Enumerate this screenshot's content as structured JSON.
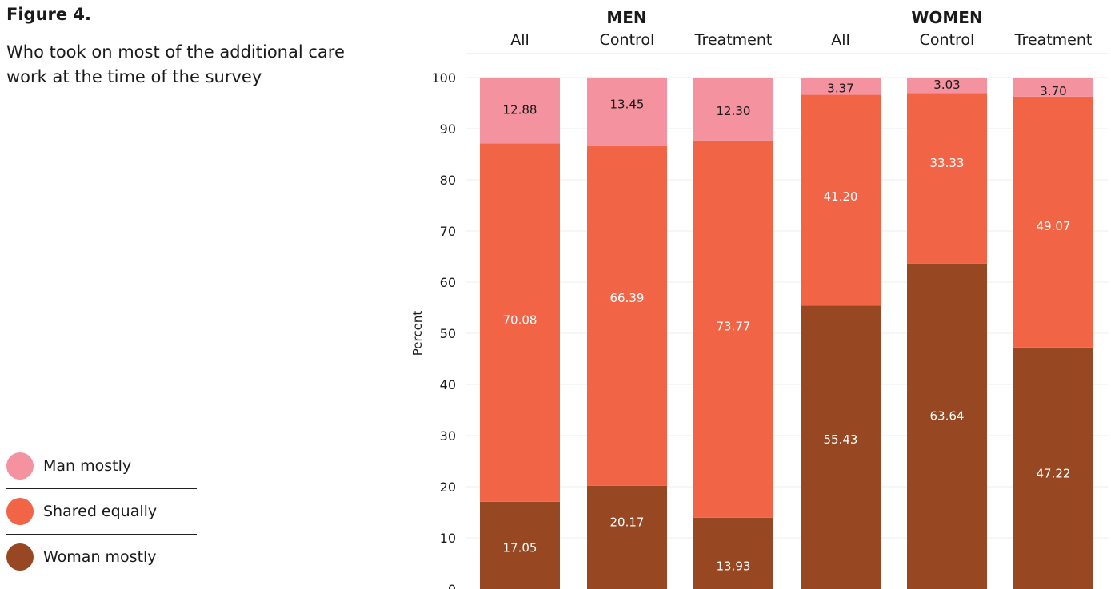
{
  "figure": {
    "title": "Figure 4.",
    "subtitle": "Who took on most of the additional care work at the time of the survey"
  },
  "legend": [
    {
      "label": "Man mostly",
      "color": "#f4929f"
    },
    {
      "label": "Shared equally",
      "color": "#f26446"
    },
    {
      "label": "Woman mostly",
      "color": "#974822"
    }
  ],
  "chart_data": {
    "type": "bar",
    "stacked": true,
    "title": "",
    "xlabel": "",
    "ylabel": "Percent",
    "ylim": [
      0,
      100
    ],
    "yticks": [
      0,
      10,
      20,
      30,
      40,
      50,
      60,
      70,
      80,
      90,
      100
    ],
    "grid": true,
    "groups": [
      {
        "label": "MEN",
        "categories": [
          "All",
          "Control",
          "Treatment"
        ]
      },
      {
        "label": "WOMEN",
        "categories": [
          "All",
          "Control",
          "Treatment"
        ]
      }
    ],
    "categories": [
      "All",
      "Control",
      "Treatment",
      "All",
      "Control",
      "Treatment"
    ],
    "series": [
      {
        "name": "Woman mostly",
        "color": "#974822",
        "label_color": "#ffffff",
        "values": [
          17.05,
          20.17,
          13.93,
          55.43,
          63.64,
          47.22
        ],
        "labels": [
          "17.05",
          "20.17",
          "13.93",
          "55.43",
          "63.64",
          "47.22"
        ]
      },
      {
        "name": "Shared equally",
        "color": "#f26446",
        "label_color": "#ffffff",
        "values": [
          70.08,
          66.39,
          73.77,
          41.2,
          33.33,
          49.07
        ],
        "labels": [
          "70.08",
          "66.39",
          "73.77",
          "41.20",
          "33.33",
          "49.07"
        ]
      },
      {
        "name": "Man mostly",
        "color": "#f4929f",
        "label_color": "#1a1a1a",
        "values": [
          12.88,
          13.45,
          12.3,
          3.37,
          3.03,
          3.7
        ],
        "labels": [
          "12.88",
          "13.45",
          "12.30",
          "3.37",
          "3.03",
          "3.70"
        ]
      }
    ],
    "legend_position": "left"
  }
}
